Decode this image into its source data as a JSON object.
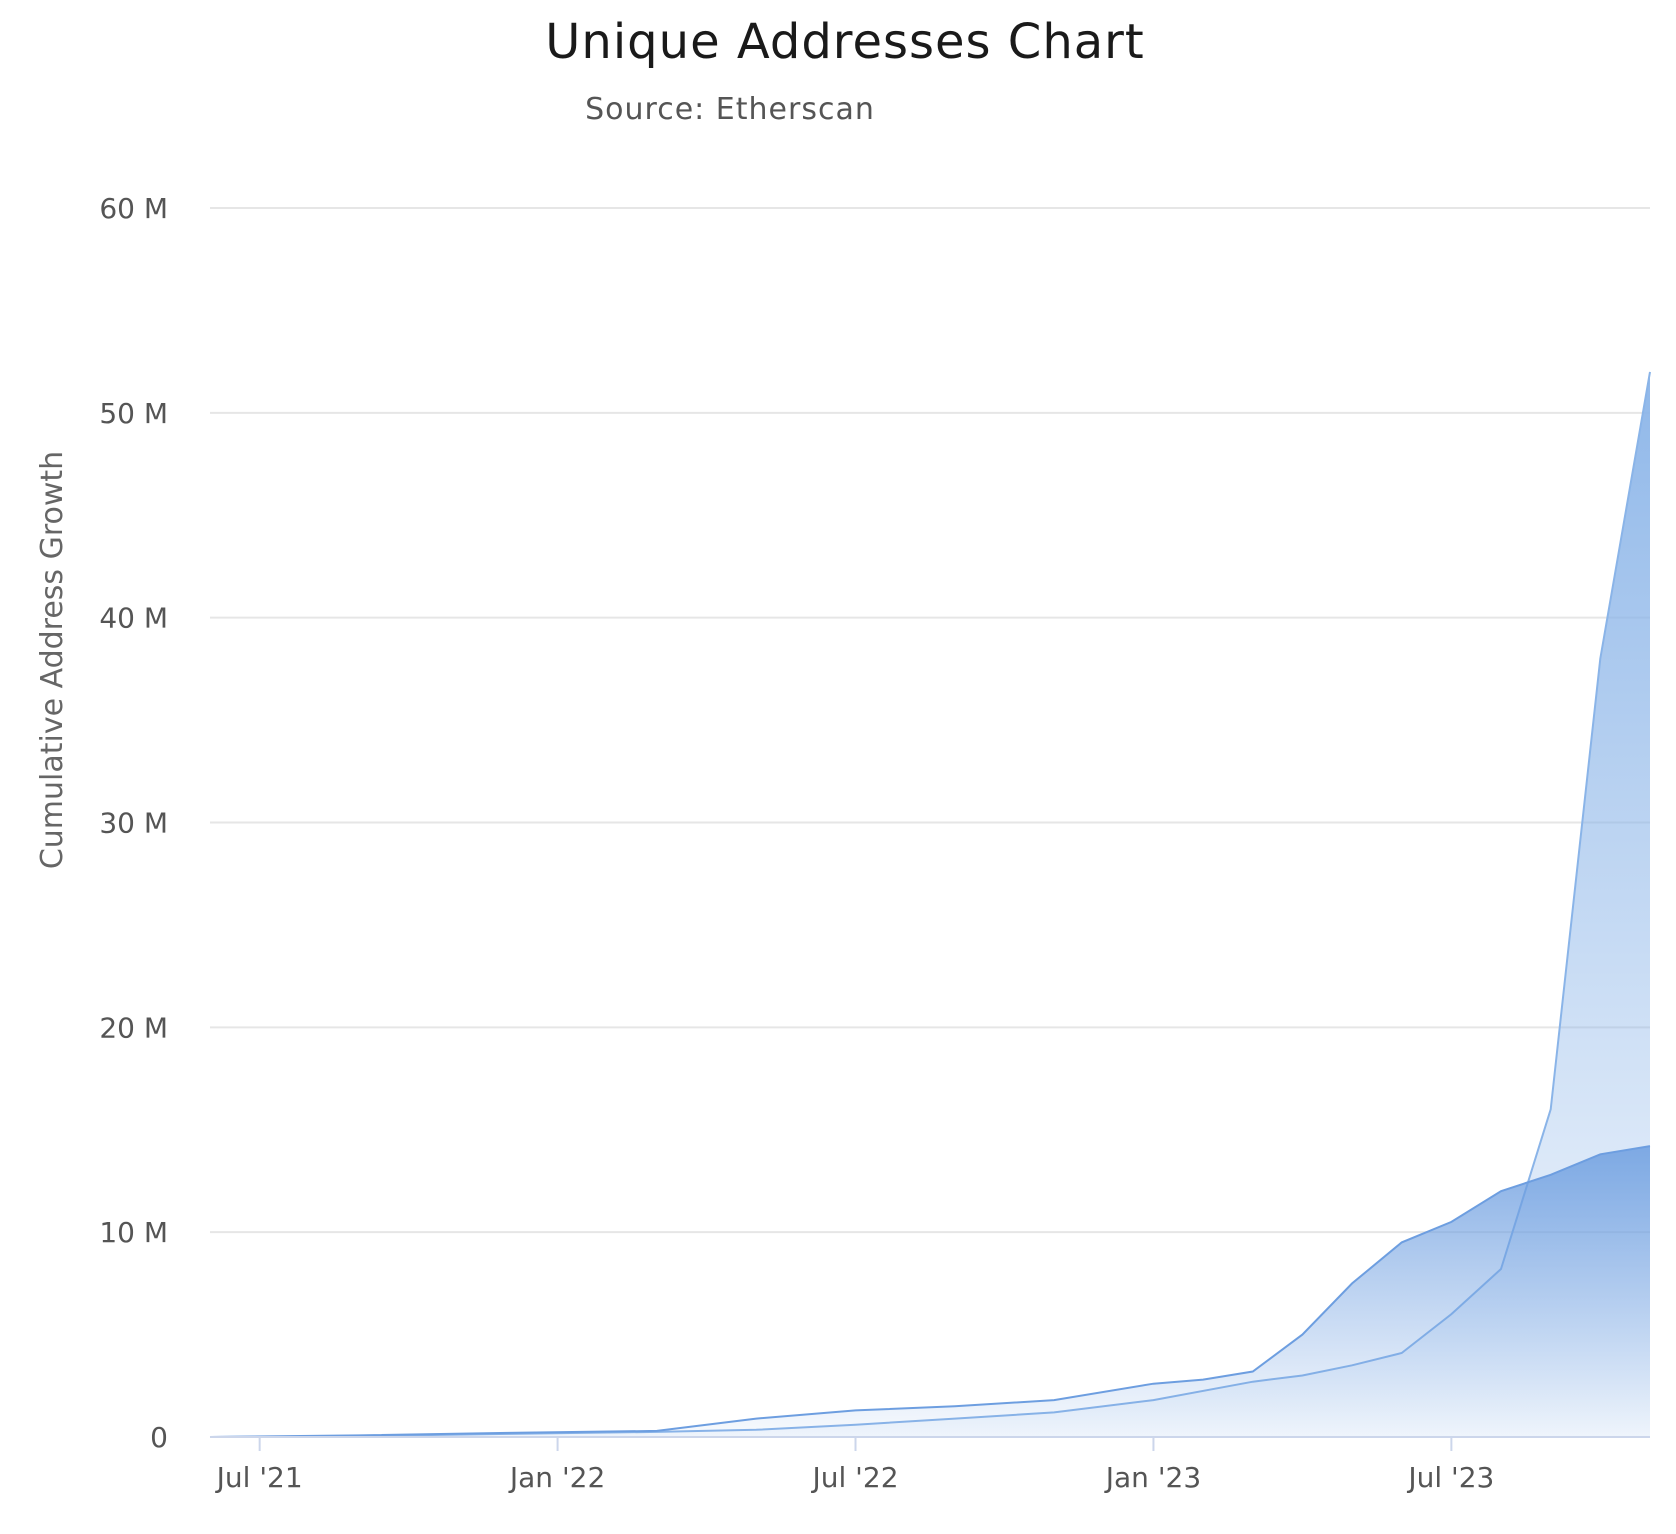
{
  "chart_data": {
    "type": "area",
    "title": "Unique Addresses Chart",
    "subtitle": "Source: Etherscan",
    "xlabel": "",
    "ylabel": "Cumulative Address Growth",
    "x_ticks": [
      "Jul '21",
      "Jan '22",
      "Jul '22",
      "Jan '23",
      "Jul '23"
    ],
    "y_ticks": [
      "0",
      "10 M",
      "20 M",
      "30 M",
      "40 M",
      "50 M",
      "60 M"
    ],
    "ylim": [
      0,
      60000000
    ],
    "xlim": [
      "2021-06",
      "2023-11"
    ],
    "grid": true,
    "legend": "none",
    "colors": {
      "series_a": "#8ab4e8",
      "series_b": "#6d9ee0",
      "grid": "#e6e6e6",
      "axis": "#ccd6eb"
    },
    "series": [
      {
        "x": [
          "2021-06",
          "2021-09",
          "2021-12",
          "2022-03",
          "2022-05",
          "2022-07",
          "2022-09",
          "2022-11",
          "2023-01",
          "2023-03",
          "2023-04",
          "2023-05",
          "2023-06",
          "2023-07",
          "2023-08",
          "2023-09",
          "2023-10",
          "2023-11"
        ],
        "values": [
          0,
          50000,
          150000,
          250000,
          350000,
          600000,
          900000,
          1200000,
          1800000,
          2700000,
          3000000,
          3500000,
          4100000,
          6000000,
          8200000,
          16000000,
          38000000,
          52000000
        ]
      },
      {
        "x": [
          "2021-06",
          "2021-09",
          "2021-12",
          "2022-03",
          "2022-05",
          "2022-07",
          "2022-09",
          "2022-11",
          "2023-01",
          "2023-02",
          "2023-03",
          "2023-04",
          "2023-05",
          "2023-06",
          "2023-07",
          "2023-08",
          "2023-09",
          "2023-10",
          "2023-11"
        ],
        "values": [
          0,
          80000,
          200000,
          300000,
          900000,
          1300000,
          1500000,
          1800000,
          2600000,
          2800000,
          3200000,
          5000000,
          7500000,
          9500000,
          10500000,
          12000000,
          12800000,
          13800000,
          14200000
        ]
      }
    ]
  }
}
